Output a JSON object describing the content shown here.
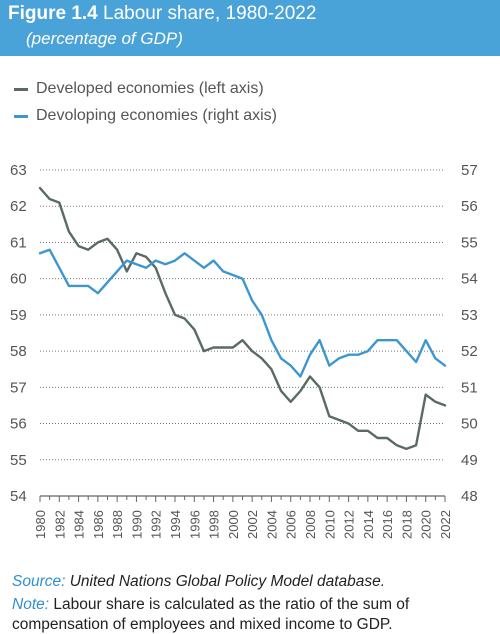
{
  "figure": {
    "number": "Figure 1.4",
    "title": "Labour share, 1980-2022",
    "subtitle": "(percentage of GDP)"
  },
  "colors": {
    "header_bg": "#4aa3d8",
    "developed": "#5a6b63",
    "developing": "#3d97cf"
  },
  "chart_data": {
    "type": "line",
    "x": [
      1980,
      1981,
      1982,
      1983,
      1984,
      1985,
      1986,
      1987,
      1988,
      1989,
      1990,
      1991,
      1992,
      1993,
      1994,
      1995,
      1996,
      1997,
      1998,
      1999,
      2000,
      2001,
      2002,
      2003,
      2004,
      2005,
      2006,
      2007,
      2008,
      2009,
      2010,
      2011,
      2012,
      2013,
      2014,
      2015,
      2016,
      2017,
      2018,
      2019,
      2020,
      2021,
      2022
    ],
    "x_ticks": [
      1980,
      1982,
      1984,
      1986,
      1988,
      1990,
      1992,
      1994,
      1996,
      1998,
      2000,
      2002,
      2004,
      2006,
      2008,
      2010,
      2012,
      2014,
      2016,
      2018,
      2020,
      2022
    ],
    "y_left": {
      "range": [
        54,
        63
      ],
      "ticks": [
        54,
        55,
        56,
        57,
        58,
        59,
        60,
        61,
        62,
        63
      ]
    },
    "y_right": {
      "range": [
        48,
        57
      ],
      "ticks": [
        48,
        49,
        50,
        51,
        52,
        53,
        54,
        55,
        56,
        57
      ]
    },
    "grid": "horizontal dotted",
    "series": [
      {
        "name": "Developed economies (left axis)",
        "axis": "left",
        "color": "#5a6b63",
        "values": [
          62.5,
          62.2,
          62.1,
          61.3,
          60.9,
          60.8,
          61.0,
          61.1,
          60.8,
          60.2,
          60.7,
          60.6,
          60.3,
          59.6,
          59.0,
          58.9,
          58.6,
          58.0,
          58.1,
          58.1,
          58.1,
          58.3,
          58.0,
          57.8,
          57.5,
          56.9,
          56.6,
          56.9,
          57.3,
          57.0,
          56.2,
          56.1,
          56.0,
          55.8,
          55.8,
          55.6,
          55.6,
          55.4,
          55.3,
          55.4,
          56.8,
          56.6,
          56.5
        ]
      },
      {
        "name": "Devoloping economies (right axis)",
        "axis": "right",
        "color": "#3d97cf",
        "values": [
          54.7,
          54.8,
          54.3,
          53.8,
          53.8,
          53.8,
          53.6,
          53.9,
          54.2,
          54.5,
          54.4,
          54.3,
          54.5,
          54.4,
          54.5,
          54.7,
          54.5,
          54.3,
          54.5,
          54.2,
          54.1,
          54.0,
          53.4,
          53.0,
          52.3,
          51.8,
          51.6,
          51.3,
          51.9,
          52.3,
          51.6,
          51.8,
          51.9,
          51.9,
          52.0,
          52.3,
          52.3,
          52.3,
          52.0,
          51.7,
          52.3,
          51.8,
          51.6
        ]
      }
    ]
  },
  "footer": {
    "source_label": "Source:",
    "source_text": " United Nations Global Policy Model database.",
    "note_label": "Note:",
    "note_text_1": " Labour share is calculated as the ratio of the sum of",
    "note_text_2": "compensation of employees and mixed income to GDP."
  }
}
